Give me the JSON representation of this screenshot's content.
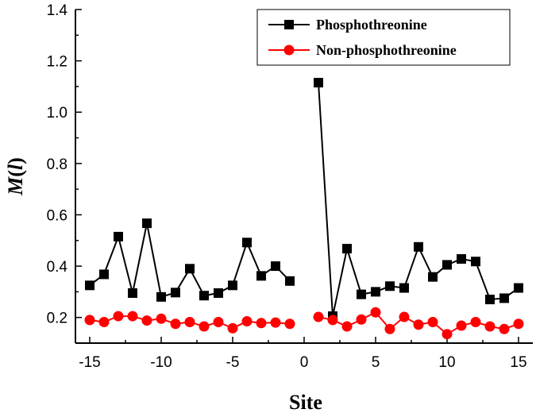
{
  "chart_data": {
    "type": "line",
    "title": "",
    "xlabel": "Site",
    "ylabel": "M(l)",
    "ylabel_parts": {
      "base": "M",
      "open": "(",
      "var": "l",
      "close": ")"
    },
    "xlim": [
      -16,
      16
    ],
    "ylim": [
      0.1,
      1.4
    ],
    "xticks": [
      -15,
      -10,
      -5,
      0,
      5,
      10,
      15
    ],
    "yticks": [
      0.2,
      0.4,
      0.6,
      0.8,
      1.0,
      1.2,
      1.4
    ],
    "ytick_labels": [
      "0.2",
      "0.4",
      "0.6",
      "0.8",
      "1.0",
      "1.2",
      "1.4"
    ],
    "grid": false,
    "legend_position": "top-right",
    "series": [
      {
        "name": "Phosphothreonine",
        "color": "#000000",
        "marker": "square",
        "segments": [
          {
            "x": [
              -15,
              -14,
              -13,
              -12,
              -11,
              -10,
              -9,
              -8,
              -7,
              -6,
              -5,
              -4,
              -3,
              -2,
              -1
            ],
            "y": [
              0.325,
              0.368,
              0.515,
              0.295,
              0.567,
              0.28,
              0.297,
              0.39,
              0.285,
              0.295,
              0.325,
              0.492,
              0.362,
              0.4,
              0.342
            ]
          },
          {
            "x": [
              1,
              2,
              3,
              4,
              5,
              6,
              7,
              8,
              9,
              10,
              11,
              12,
              13,
              14,
              15
            ],
            "y": [
              1.115,
              0.205,
              0.468,
              0.29,
              0.3,
              0.322,
              0.315,
              0.475,
              0.358,
              0.405,
              0.428,
              0.418,
              0.27,
              0.275,
              0.315
            ]
          }
        ]
      },
      {
        "name": "Non-phosphothreonine",
        "color": "#ff0000",
        "marker": "circle",
        "segments": [
          {
            "x": [
              -15,
              -14,
              -13,
              -12,
              -11,
              -10,
              -9,
              -8,
              -7,
              -6,
              -5,
              -4,
              -3,
              -2,
              -1
            ],
            "y": [
              0.19,
              0.182,
              0.205,
              0.205,
              0.188,
              0.195,
              0.175,
              0.182,
              0.165,
              0.182,
              0.158,
              0.185,
              0.178,
              0.18,
              0.175
            ]
          },
          {
            "x": [
              1,
              2,
              3,
              4,
              5,
              6,
              7,
              8,
              9,
              10,
              11,
              12,
              13,
              14,
              15
            ],
            "y": [
              0.202,
              0.19,
              0.165,
              0.192,
              0.22,
              0.155,
              0.202,
              0.172,
              0.182,
              0.135,
              0.168,
              0.182,
              0.165,
              0.155,
              0.175
            ]
          }
        ]
      }
    ]
  }
}
